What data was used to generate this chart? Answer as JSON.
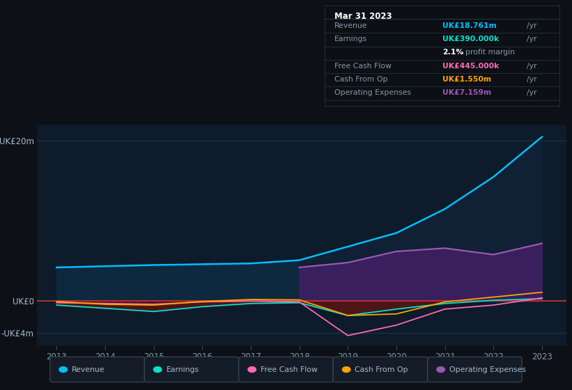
{
  "bg_color": "#0d1117",
  "chart_bg": "#0d1b2a",
  "grid_color": "#2a3a4a",
  "zero_line_color": "#cc3333",
  "years": [
    2013,
    2014,
    2015,
    2016,
    2017,
    2018,
    2019,
    2020,
    2021,
    2022,
    2023
  ],
  "revenue": [
    4.2,
    4.35,
    4.5,
    4.6,
    4.7,
    5.1,
    6.8,
    8.5,
    11.5,
    15.5,
    20.5
  ],
  "earnings": [
    -0.5,
    -0.9,
    -1.3,
    -0.7,
    -0.3,
    -0.2,
    -1.8,
    -1.0,
    -0.3,
    0.1,
    0.3
  ],
  "free_cash": [
    -0.2,
    -0.3,
    -0.4,
    -0.1,
    0.0,
    -0.1,
    -4.3,
    -3.0,
    -1.0,
    -0.5,
    0.4
  ],
  "cash_from_op": [
    -0.05,
    -0.4,
    -0.5,
    -0.05,
    0.2,
    0.15,
    -1.8,
    -1.6,
    -0.1,
    0.5,
    1.1
  ],
  "op_expenses": [
    0.0,
    0.0,
    0.0,
    0.0,
    0.0,
    4.2,
    4.8,
    6.2,
    6.6,
    5.8,
    7.2
  ],
  "revenue_color": "#00bfff",
  "earnings_color": "#00e5cc",
  "free_cash_color": "#ff69b4",
  "cash_from_op_color": "#ffa500",
  "op_expenses_color": "#9b59b6",
  "op_expenses_fill": "#3a1f5e",
  "revenue_fill_pre": "#0e2840",
  "revenue_fill_post": "#102035",
  "earnings_fill": "#5a1515",
  "ylim_min": -5.5,
  "ylim_max": 22.0,
  "ytick_vals": [
    20,
    0,
    -4
  ],
  "ytick_labels": [
    "UK£20m",
    "UK£0",
    "-UK£4m"
  ],
  "legend_items": [
    "Revenue",
    "Earnings",
    "Free Cash Flow",
    "Cash From Op",
    "Operating Expenses"
  ],
  "legend_colors": [
    "#00bfff",
    "#00e5cc",
    "#ff69b4",
    "#ffa500",
    "#9b59b6"
  ],
  "info_box": {
    "date": "Mar 31 2023",
    "rows": [
      {
        "label": "Revenue",
        "value": "UK£18.761m",
        "unit": "/yr",
        "color": "#00bfff"
      },
      {
        "label": "Earnings",
        "value": "UK£390.000k",
        "unit": "/yr",
        "color": "#00e5cc"
      },
      {
        "label": "",
        "value": "2.1%",
        "unit": "profit margin",
        "color": "#ffffff"
      },
      {
        "label": "Free Cash Flow",
        "value": "UK£445.000k",
        "unit": "/yr",
        "color": "#ff69b4"
      },
      {
        "label": "Cash From Op",
        "value": "UK£1.550m",
        "unit": "/yr",
        "color": "#ffa500"
      },
      {
        "label": "Operating Expenses",
        "value": "UK£7.159m",
        "unit": "/yr",
        "color": "#9b59b6"
      }
    ]
  }
}
